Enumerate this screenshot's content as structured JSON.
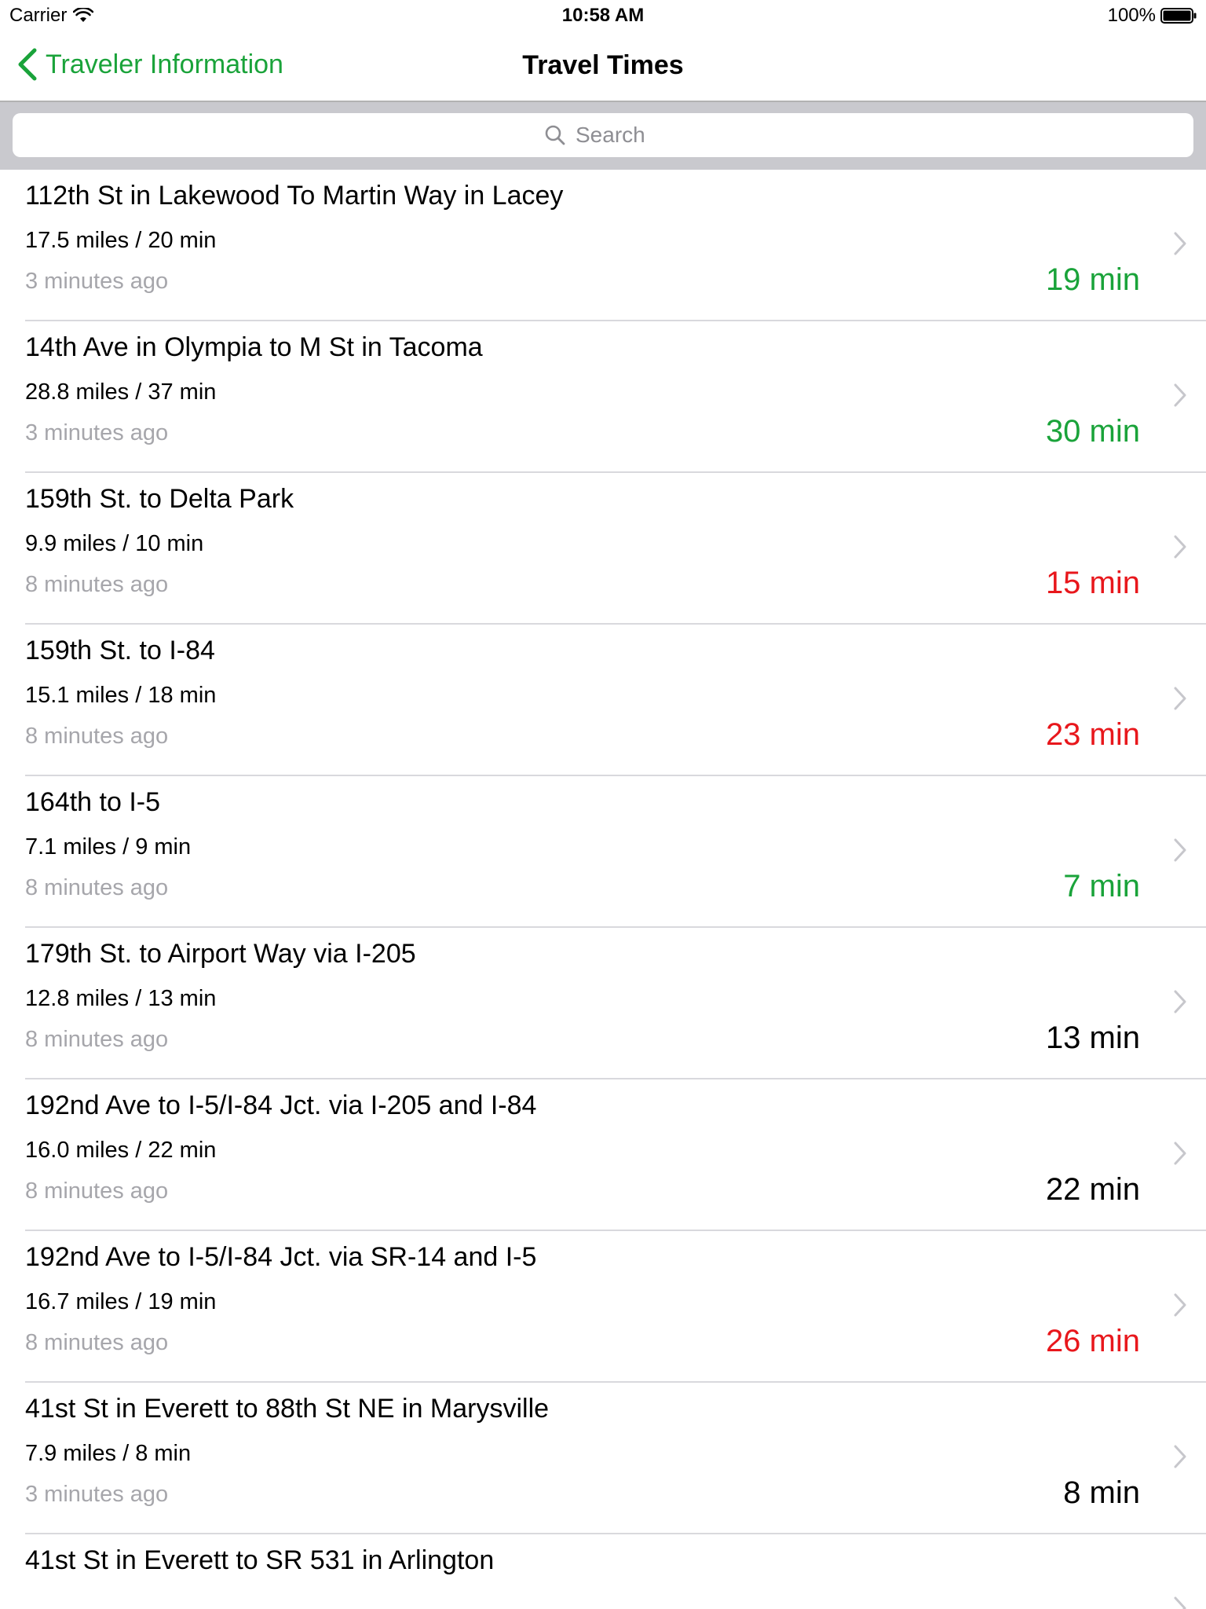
{
  "status_bar": {
    "carrier": "Carrier",
    "time": "10:58 AM",
    "battery": "100%"
  },
  "nav": {
    "back_label": "Traveler Information",
    "title": "Travel Times"
  },
  "search": {
    "placeholder": "Search"
  },
  "colors": {
    "accent": "#1aa33a",
    "faster": "#1aa33a",
    "slower": "#e8171c",
    "normal": "#000000",
    "secondary": "#a6a6ab"
  },
  "routes": [
    {
      "name": "112th St in Lakewood To Martin Way in Lacey",
      "distance": "17.5 miles / 20 min",
      "updated": "3 minutes ago",
      "current": "19 min",
      "status": "faster"
    },
    {
      "name": "14th Ave in Olympia to M St in Tacoma",
      "distance": "28.8 miles / 37 min",
      "updated": "3 minutes ago",
      "current": "30 min",
      "status": "faster"
    },
    {
      "name": "159th St. to Delta Park",
      "distance": "9.9 miles / 10 min",
      "updated": "8 minutes ago",
      "current": "15 min",
      "status": "slower"
    },
    {
      "name": "159th St. to I-84",
      "distance": "15.1 miles / 18 min",
      "updated": "8 minutes ago",
      "current": "23 min",
      "status": "slower"
    },
    {
      "name": "164th to I-5",
      "distance": "7.1 miles / 9 min",
      "updated": "8 minutes ago",
      "current": "7 min",
      "status": "faster"
    },
    {
      "name": "179th St. to Airport Way via I-205",
      "distance": "12.8 miles / 13 min",
      "updated": "8 minutes ago",
      "current": "13 min",
      "status": "normal"
    },
    {
      "name": "192nd Ave to I-5/I-84 Jct. via I-205 and I-84",
      "distance": "16.0 miles / 22 min",
      "updated": "8 minutes ago",
      "current": "22 min",
      "status": "normal"
    },
    {
      "name": "192nd Ave to I-5/I-84 Jct. via SR-14 and I-5",
      "distance": "16.7 miles / 19 min",
      "updated": "8 minutes ago",
      "current": "26 min",
      "status": "slower"
    },
    {
      "name": "41st St in Everett to 88th St NE in Marysville",
      "distance": "7.9 miles / 8 min",
      "updated": "3 minutes ago",
      "current": "8 min",
      "status": "normal"
    },
    {
      "name": "41st St in Everett to SR 531 in Arlington",
      "distance": "",
      "updated": "",
      "current": "",
      "status": "normal"
    }
  ]
}
